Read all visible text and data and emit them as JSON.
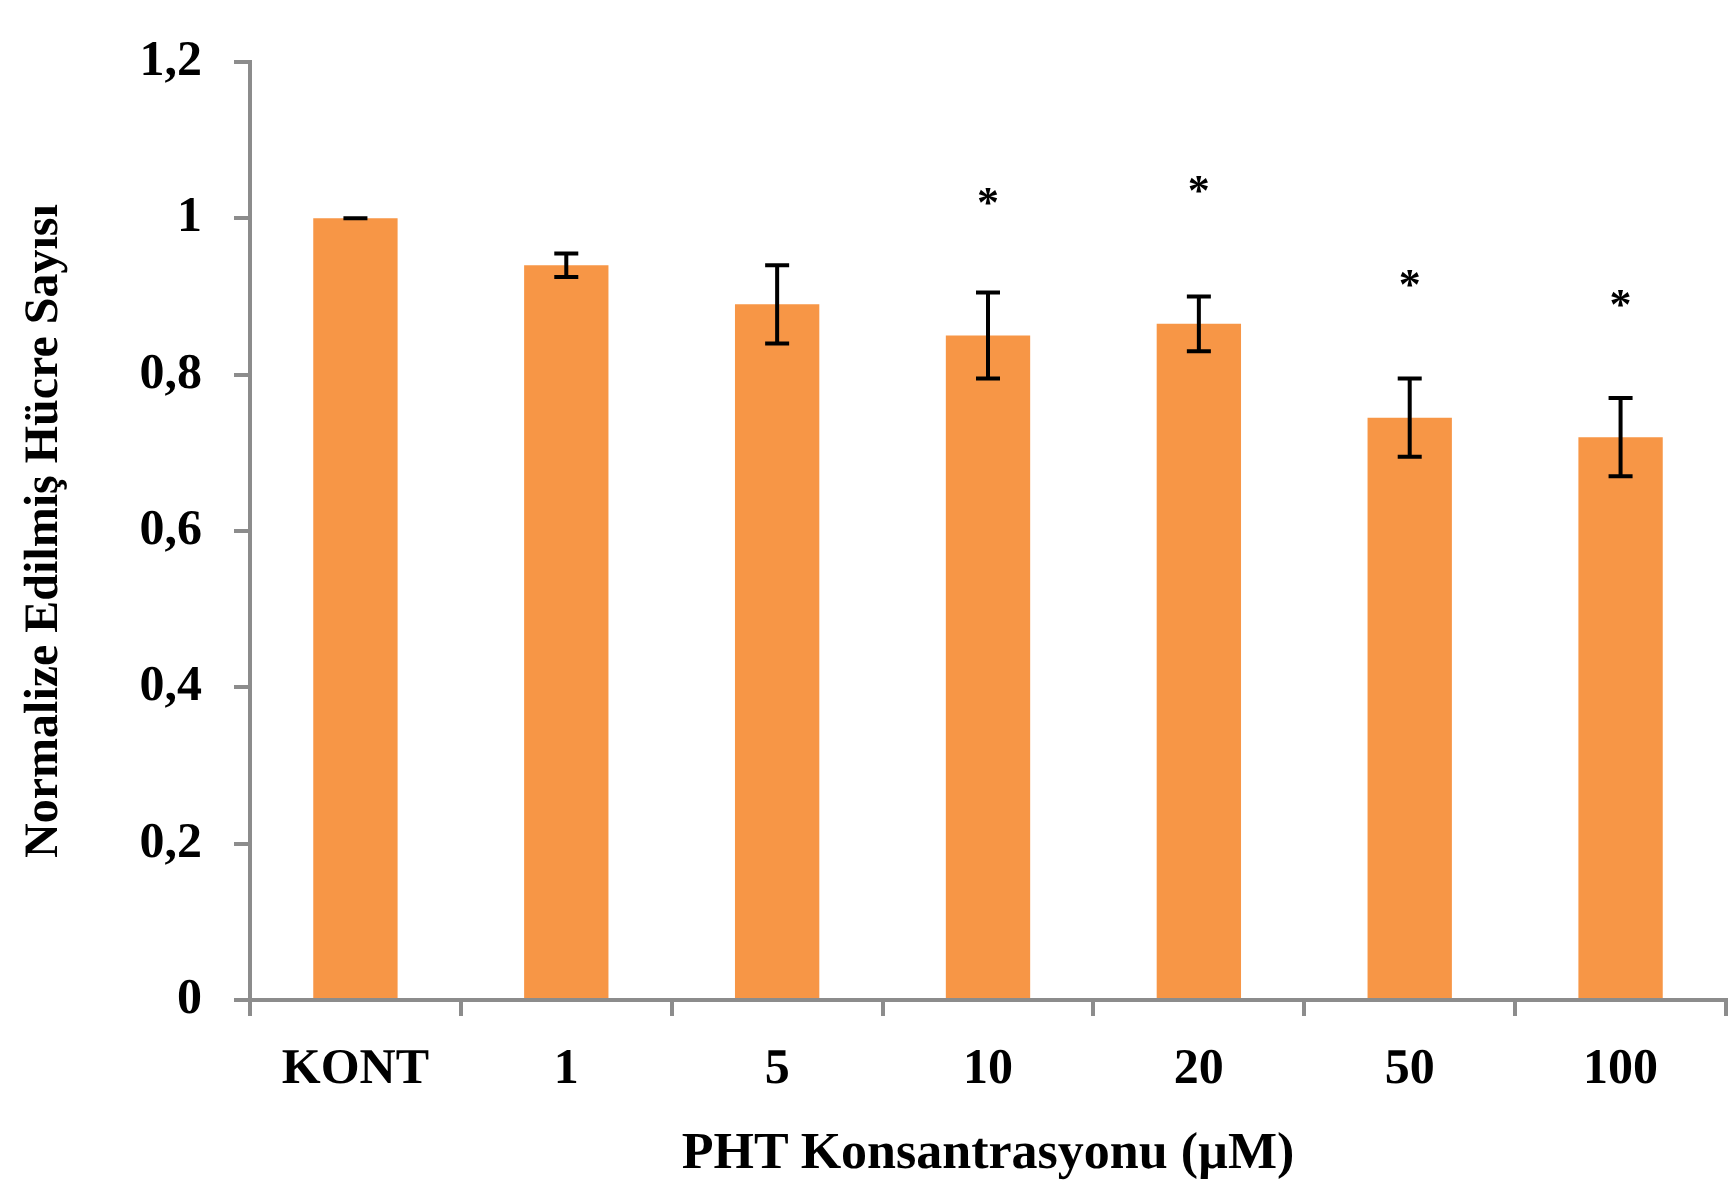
{
  "chart_data": {
    "type": "bar",
    "xlabel": "PHT Konsantrasyonu (µM)",
    "ylabel": "Normalize Edilmiş Hücre Sayısı",
    "categories": [
      "KONT",
      "1",
      "5",
      "10",
      "20",
      "50",
      "100"
    ],
    "values": [
      1.0,
      0.94,
      0.89,
      0.85,
      0.865,
      0.745,
      0.72
    ],
    "errors": [
      0,
      0.015,
      0.05,
      0.055,
      0.035,
      0.05,
      0.05
    ],
    "value_labels": [
      null,
      null,
      null,
      "*",
      "*",
      "*",
      "*"
    ],
    "color": "#f79646",
    "ylim": [
      0,
      1.2
    ],
    "yticks": [
      0,
      {
        "value": 0.2,
        "label": "0,2"
      },
      {
        "value": 0.4,
        "label": "0,4"
      },
      {
        "value": 0.6,
        "label": "0,6"
      },
      {
        "value": 0.8,
        "label": "0,8"
      },
      1,
      {
        "value": 1.2,
        "label": "1,2"
      }
    ],
    "legend": false
  }
}
